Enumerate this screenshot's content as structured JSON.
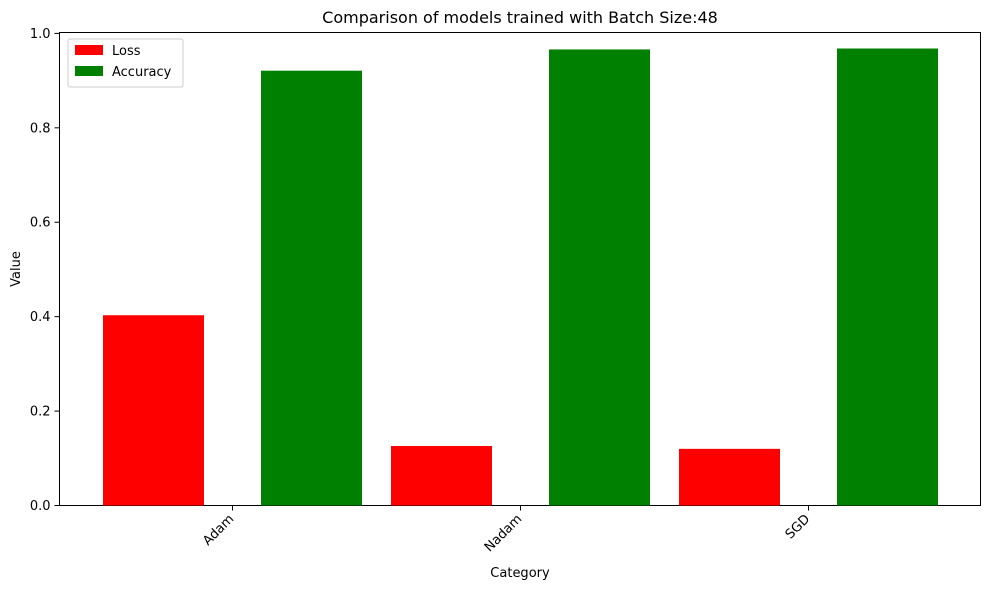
{
  "chart_data": {
    "type": "bar",
    "title": "Comparison of models trained with Batch Size:48",
    "xlabel": "Category",
    "ylabel": "Value",
    "categories": [
      "Adam",
      "Nadam",
      "SGD"
    ],
    "series": [
      {
        "name": "Loss",
        "color": "#ff0000",
        "values": [
          0.403,
          0.126,
          0.12
        ]
      },
      {
        "name": "Accuracy",
        "color": "#008000",
        "values": [
          0.921,
          0.966,
          0.968
        ]
      }
    ],
    "ylim": [
      0,
      1.0
    ],
    "yticks": [
      "0.0",
      "0.2",
      "0.4",
      "0.6",
      "0.8",
      "1.0"
    ],
    "grid": false,
    "legend_position": "upper-left",
    "xtick_rotation": 45
  }
}
